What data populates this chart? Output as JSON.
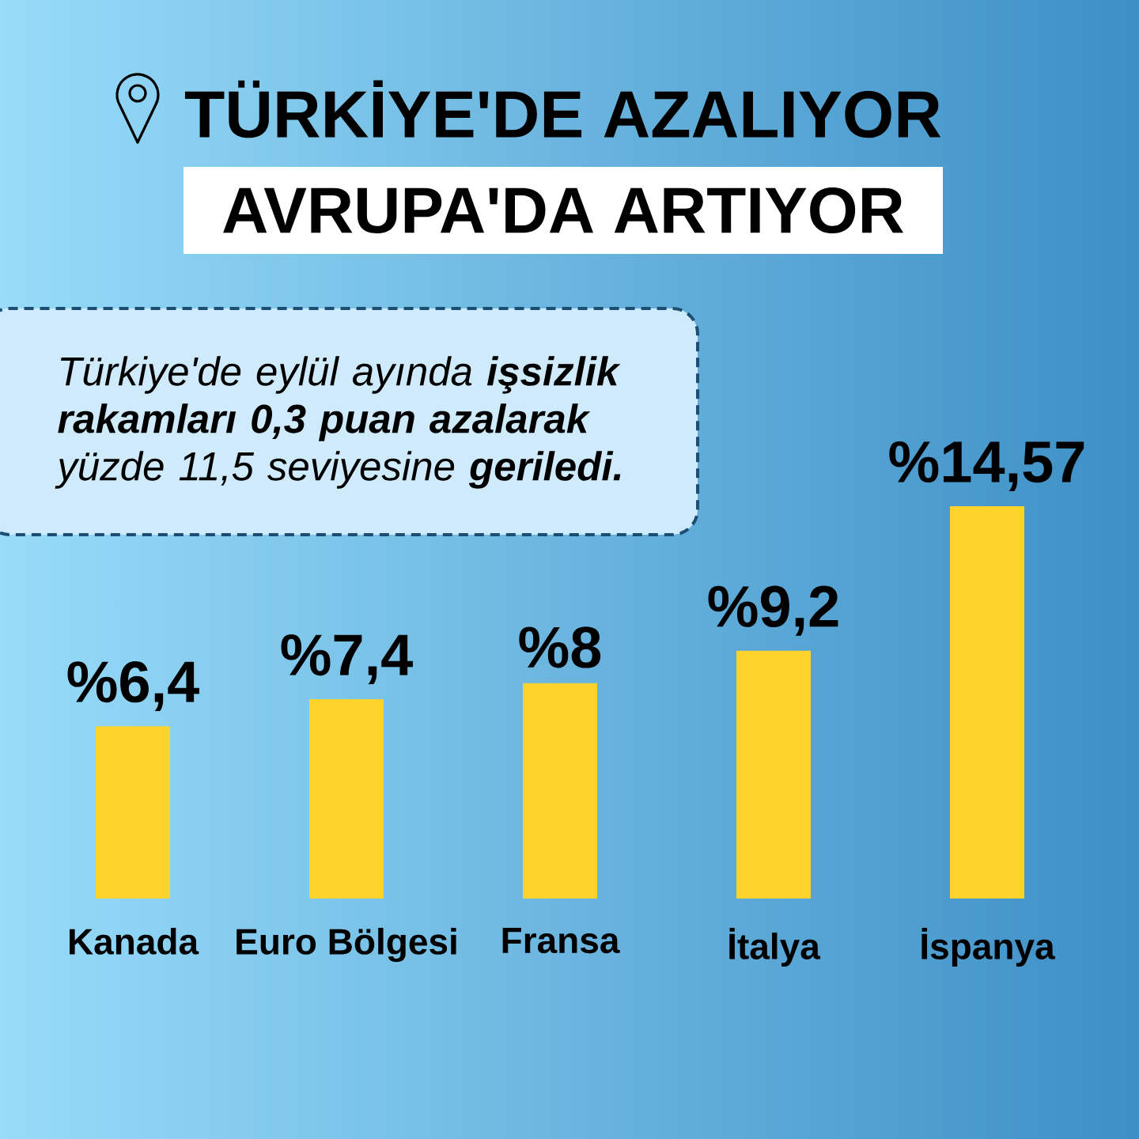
{
  "chart_data": {
    "type": "bar",
    "title": "TÜRKİYE'DE AZALIYOR",
    "subtitle": "AVRUPA'DA ARTIYOR",
    "annotations": [
      "Türkiye'de eylül ayında **işsizlik rakamları 0,3 puan azalarak** yüzde 11,5 seviyesine **geriledi.**"
    ],
    "categories": [
      "Kanada",
      "Euro Bölgesi",
      "Fransa",
      "İtalya",
      "İspanya"
    ],
    "values": [
      6.4,
      7.4,
      8,
      9.2,
      14.57
    ],
    "value_labels": [
      "%6,4",
      "%7,4",
      "%8",
      "%9,2",
      "%14,57"
    ],
    "color": "#ffd42a"
  }
}
